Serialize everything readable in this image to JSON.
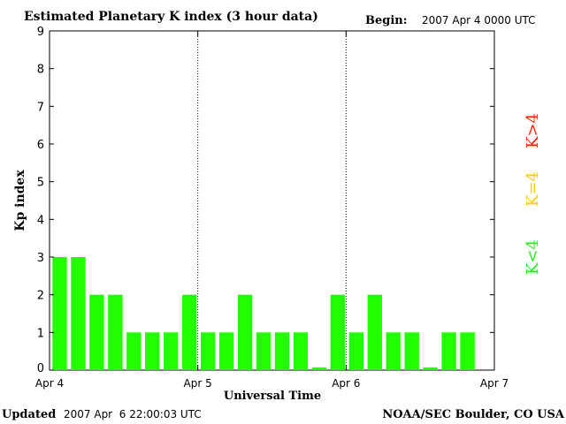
{
  "chart_data": {
    "type": "bar",
    "title": "Estimated Planetary K index (3 hour data)",
    "begin_label": "Begin:",
    "begin_value": "2007 Apr 4 0000 UTC",
    "ylabel": "Kp index",
    "xlabel": "Universal Time",
    "ylim": [
      0,
      9
    ],
    "yticks": [
      "0",
      "1",
      "2",
      "3",
      "4",
      "5",
      "6",
      "7",
      "8",
      "9"
    ],
    "xticks": [
      "Apr 4",
      "Apr 5",
      "Apr 6",
      "Apr 7"
    ],
    "grid": false,
    "day_separators": "dotted vertical lines at Apr 5 and Apr 6",
    "interval_hours": 3,
    "values": [
      3,
      3,
      2,
      2,
      1,
      1,
      1,
      2,
      1,
      1,
      2,
      1,
      1,
      1,
      0,
      2,
      1,
      2,
      1,
      1,
      0,
      1,
      1
    ],
    "bar_color": "#22ff00",
    "legend": [
      {
        "label": "K<4",
        "color": "#22ee22"
      },
      {
        "label": "K=4",
        "color": "#ffcc00"
      },
      {
        "label": "K>4",
        "color": "#ff2200"
      }
    ],
    "legend_placement": "right, vertical"
  },
  "footer": {
    "updated_label": "Updated",
    "updated_value": "2007 Apr  6 22:00:03 UTC",
    "source": "NOAA/SEC Boulder, CO USA"
  }
}
